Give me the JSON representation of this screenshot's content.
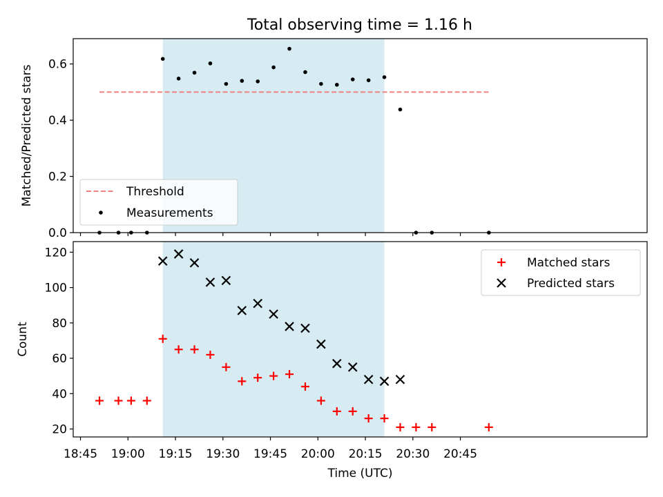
{
  "figure": {
    "title": "Total observing time = 1.16 h"
  },
  "chart_data": [
    {
      "type": "scatter",
      "ylabel": "Matched/Predicted stars",
      "ylim": [
        0,
        0.69
      ],
      "yticks": [
        0,
        0.2,
        0.4,
        0.6
      ],
      "ytick_labels": [
        "0.0",
        "0.2",
        "0.4",
        "0.6"
      ],
      "x_minutes_from": "18:45",
      "xlim": [
        -2.3,
        179
      ],
      "highlight_span": [
        "19:11",
        "20:21"
      ],
      "highlight_color": "#add8e6",
      "threshold": {
        "name": "Threshold",
        "value": 0.5,
        "x_range": [
          "18:51",
          "20:54"
        ],
        "color": "#f08080"
      },
      "series": [
        {
          "name": "Measurements",
          "color": "#000000",
          "marker": "dot",
          "x": [
            "18:51",
            "18:57",
            "19:01",
            "19:06",
            "19:11",
            "19:16",
            "19:21",
            "19:26",
            "19:31",
            "19:36",
            "19:41",
            "19:46",
            "19:51",
            "19:56",
            "20:01",
            "20:06",
            "20:11",
            "20:16",
            "20:21",
            "20:26",
            "20:31",
            "20:36",
            "20:54"
          ],
          "y": [
            0,
            0,
            0,
            0,
            0.618,
            0.548,
            0.569,
            0.602,
            0.529,
            0.54,
            0.538,
            0.588,
            0.654,
            0.571,
            0.529,
            0.526,
            0.545,
            0.542,
            0.553,
            0.438,
            0,
            0,
            0
          ]
        }
      ],
      "legend": {
        "placement": "lower left",
        "entries": [
          "Threshold",
          "Measurements"
        ]
      },
      "grid": false
    },
    {
      "type": "scatter",
      "xlabel": "Time (UTC)",
      "ylabel": "Count",
      "ylim": [
        15.5,
        126
      ],
      "yticks": [
        20,
        40,
        60,
        80,
        100,
        120
      ],
      "xticks": [
        "18:45",
        "19:00",
        "19:15",
        "19:30",
        "19:45",
        "20:00",
        "20:15",
        "20:30",
        "20:45"
      ],
      "x_minutes_from": "18:45",
      "xlim": [
        -2.3,
        179
      ],
      "highlight_span": [
        "19:11",
        "20:21"
      ],
      "highlight_color": "#add8e6",
      "series": [
        {
          "name": "Matched stars",
          "color": "#ff0000",
          "marker": "plus",
          "x": [
            "18:51",
            "18:57",
            "19:01",
            "19:06",
            "19:11",
            "19:16",
            "19:21",
            "19:26",
            "19:31",
            "19:36",
            "19:41",
            "19:46",
            "19:51",
            "19:56",
            "20:01",
            "20:06",
            "20:11",
            "20:16",
            "20:21",
            "20:26",
            "20:31",
            "20:36",
            "20:54"
          ],
          "y": [
            36,
            36,
            36,
            36,
            71,
            65,
            65,
            62,
            55,
            47,
            49,
            50,
            51,
            44,
            36,
            30,
            30,
            26,
            26,
            21,
            21,
            21,
            21
          ]
        },
        {
          "name": "Predicted stars",
          "color": "#000000",
          "marker": "x",
          "x": [
            "19:11",
            "19:16",
            "19:21",
            "19:26",
            "19:31",
            "19:36",
            "19:41",
            "19:46",
            "19:51",
            "19:56",
            "20:01",
            "20:06",
            "20:11",
            "20:16",
            "20:21",
            "20:26"
          ],
          "y": [
            115,
            119,
            114,
            103,
            104,
            87,
            91,
            85,
            78,
            77,
            68,
            57,
            55,
            48,
            47,
            48
          ]
        }
      ],
      "legend": {
        "placement": "upper right",
        "entries": [
          "Matched stars",
          "Predicted stars"
        ]
      },
      "grid": false
    }
  ]
}
